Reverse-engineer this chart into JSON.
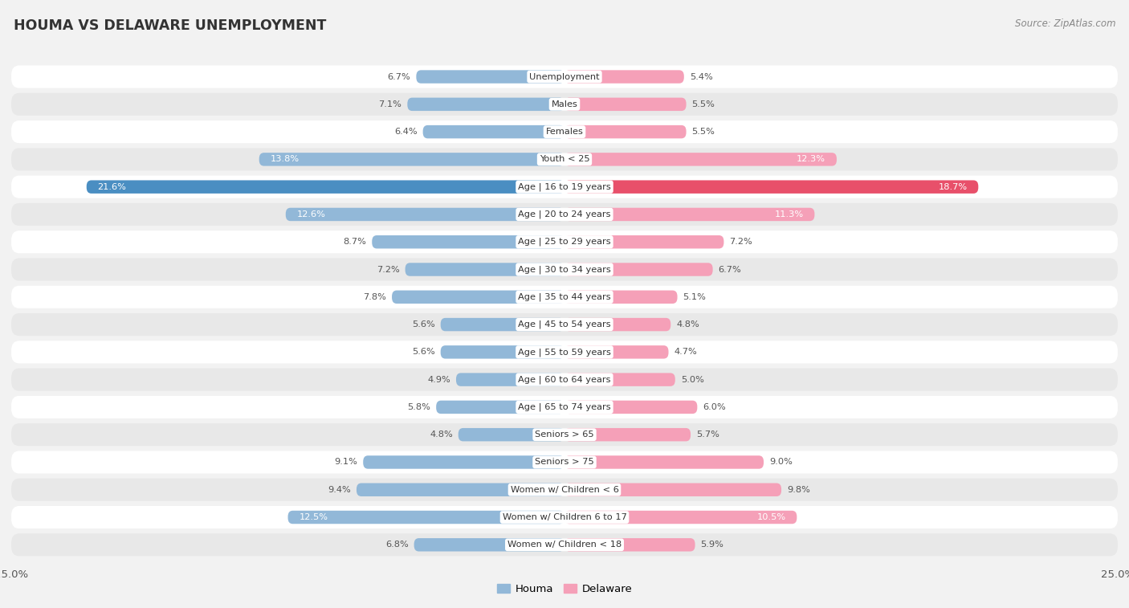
{
  "title": "HOUMA VS DELAWARE UNEMPLOYMENT",
  "source": "Source: ZipAtlas.com",
  "categories": [
    "Unemployment",
    "Males",
    "Females",
    "Youth < 25",
    "Age | 16 to 19 years",
    "Age | 20 to 24 years",
    "Age | 25 to 29 years",
    "Age | 30 to 34 years",
    "Age | 35 to 44 years",
    "Age | 45 to 54 years",
    "Age | 55 to 59 years",
    "Age | 60 to 64 years",
    "Age | 65 to 74 years",
    "Seniors > 65",
    "Seniors > 75",
    "Women w/ Children < 6",
    "Women w/ Children 6 to 17",
    "Women w/ Children < 18"
  ],
  "houma_values": [
    6.7,
    7.1,
    6.4,
    13.8,
    21.6,
    12.6,
    8.7,
    7.2,
    7.8,
    5.6,
    5.6,
    4.9,
    5.8,
    4.8,
    9.1,
    9.4,
    12.5,
    6.8
  ],
  "delaware_values": [
    5.4,
    5.5,
    5.5,
    12.3,
    18.7,
    11.3,
    7.2,
    6.7,
    5.1,
    4.8,
    4.7,
    5.0,
    6.0,
    5.7,
    9.0,
    9.8,
    10.5,
    5.9
  ],
  "houma_color": "#92b8d8",
  "delaware_color": "#f5a0b8",
  "houma_highlight_color": "#4a8ec2",
  "delaware_highlight_color": "#e8506a",
  "max_value": 25.0,
  "bg_color": "#f2f2f2",
  "row_bg_white": "#ffffff",
  "row_bg_gray": "#e8e8e8",
  "legend_houma": "Houma",
  "legend_delaware": "Delaware",
  "center_label_bg": "#ffffff",
  "value_color": "#555555",
  "title_color": "#333333",
  "source_color": "#888888"
}
